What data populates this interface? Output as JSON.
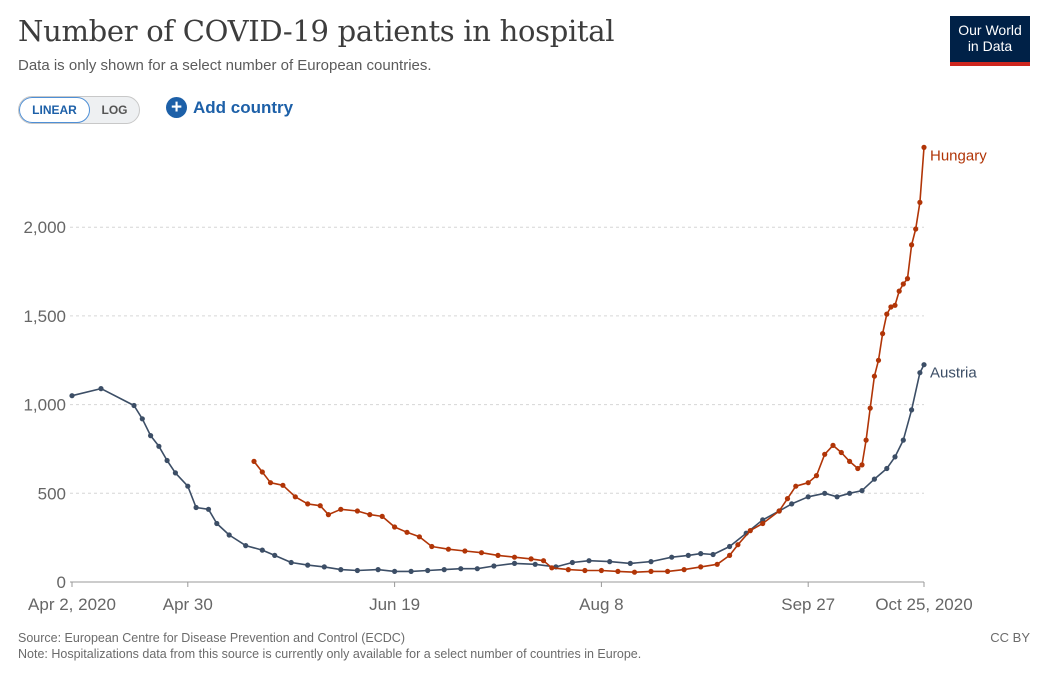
{
  "header": {
    "title": "Number of COVID-19 patients in hospital",
    "subtitle": "Data is only shown for a select number of European countries."
  },
  "logo": {
    "line1": "Our World",
    "line2": "in Data"
  },
  "controls": {
    "linear_label": "LINEAR",
    "log_label": "LOG",
    "add_country_label": "Add country",
    "active_scale": "linear"
  },
  "footer": {
    "source": "Source: European Centre for Disease Prevention and Control (ECDC)",
    "note": "Note: Hospitalizations data from this source is currently only available for a select number of countries in Europe.",
    "license": "CC BY"
  },
  "colors": {
    "austria": "#3c4e66",
    "hungary": "#b13507",
    "grid": "#d6d6d6",
    "axis_text": "#666666",
    "accent": "#1d60a8"
  },
  "chart_data": {
    "type": "line",
    "x_axis": "date",
    "xlim": [
      "2020-04-02",
      "2020-10-25"
    ],
    "ylim": [
      0,
      2500
    ],
    "xticks": [
      {
        "date": "2020-04-02",
        "label": "Apr 2, 2020"
      },
      {
        "date": "2020-04-30",
        "label": "Apr 30"
      },
      {
        "date": "2020-06-19",
        "label": "Jun 19"
      },
      {
        "date": "2020-08-08",
        "label": "Aug 8"
      },
      {
        "date": "2020-09-27",
        "label": "Sep 27"
      },
      {
        "date": "2020-10-25",
        "label": "Oct 25, 2020"
      }
    ],
    "yticks": [
      {
        "value": 0,
        "label": "0"
      },
      {
        "value": 500,
        "label": "500"
      },
      {
        "value": 1000,
        "label": "1,000"
      },
      {
        "value": 1500,
        "label": "1,500"
      },
      {
        "value": 2000,
        "label": "2,000"
      }
    ],
    "grid": "horizontal dashed",
    "legend": "end-of-line labels",
    "series": [
      {
        "name": "Austria",
        "color": "#3c4e66",
        "points": [
          [
            "2020-04-02",
            1050
          ],
          [
            "2020-04-09",
            1090
          ],
          [
            "2020-04-17",
            995
          ],
          [
            "2020-04-19",
            920
          ],
          [
            "2020-04-21",
            825
          ],
          [
            "2020-04-23",
            765
          ],
          [
            "2020-04-25",
            685
          ],
          [
            "2020-04-27",
            615
          ],
          [
            "2020-04-30",
            540
          ],
          [
            "2020-05-02",
            420
          ],
          [
            "2020-05-05",
            410
          ],
          [
            "2020-05-07",
            330
          ],
          [
            "2020-05-10",
            265
          ],
          [
            "2020-05-14",
            205
          ],
          [
            "2020-05-18",
            180
          ],
          [
            "2020-05-21",
            150
          ],
          [
            "2020-05-25",
            110
          ],
          [
            "2020-05-29",
            95
          ],
          [
            "2020-06-02",
            85
          ],
          [
            "2020-06-06",
            70
          ],
          [
            "2020-06-10",
            65
          ],
          [
            "2020-06-15",
            70
          ],
          [
            "2020-06-19",
            60
          ],
          [
            "2020-06-23",
            60
          ],
          [
            "2020-06-27",
            65
          ],
          [
            "2020-07-01",
            70
          ],
          [
            "2020-07-05",
            75
          ],
          [
            "2020-07-09",
            75
          ],
          [
            "2020-07-13",
            90
          ],
          [
            "2020-07-18",
            105
          ],
          [
            "2020-07-23",
            100
          ],
          [
            "2020-07-28",
            85
          ],
          [
            "2020-08-01",
            110
          ],
          [
            "2020-08-05",
            120
          ],
          [
            "2020-08-10",
            115
          ],
          [
            "2020-08-15",
            105
          ],
          [
            "2020-08-20",
            115
          ],
          [
            "2020-08-25",
            140
          ],
          [
            "2020-08-29",
            150
          ],
          [
            "2020-09-01",
            160
          ],
          [
            "2020-09-04",
            155
          ],
          [
            "2020-09-08",
            200
          ],
          [
            "2020-09-12",
            275
          ],
          [
            "2020-09-16",
            350
          ],
          [
            "2020-09-20",
            400
          ],
          [
            "2020-09-23",
            440
          ],
          [
            "2020-09-27",
            480
          ],
          [
            "2020-10-01",
            500
          ],
          [
            "2020-10-04",
            480
          ],
          [
            "2020-10-07",
            500
          ],
          [
            "2020-10-10",
            515
          ],
          [
            "2020-10-13",
            580
          ],
          [
            "2020-10-16",
            640
          ],
          [
            "2020-10-18",
            705
          ],
          [
            "2020-10-20",
            800
          ],
          [
            "2020-10-22",
            970
          ],
          [
            "2020-10-24",
            1180
          ],
          [
            "2020-10-25",
            1225
          ]
        ]
      },
      {
        "name": "Hungary",
        "color": "#b13507",
        "points": [
          [
            "2020-05-16",
            680
          ],
          [
            "2020-05-18",
            620
          ],
          [
            "2020-05-20",
            560
          ],
          [
            "2020-05-23",
            545
          ],
          [
            "2020-05-26",
            480
          ],
          [
            "2020-05-29",
            440
          ],
          [
            "2020-06-01",
            430
          ],
          [
            "2020-06-03",
            380
          ],
          [
            "2020-06-06",
            410
          ],
          [
            "2020-06-10",
            400
          ],
          [
            "2020-06-13",
            380
          ],
          [
            "2020-06-16",
            370
          ],
          [
            "2020-06-19",
            310
          ],
          [
            "2020-06-22",
            280
          ],
          [
            "2020-06-25",
            255
          ],
          [
            "2020-06-28",
            200
          ],
          [
            "2020-07-02",
            185
          ],
          [
            "2020-07-06",
            175
          ],
          [
            "2020-07-10",
            165
          ],
          [
            "2020-07-14",
            150
          ],
          [
            "2020-07-18",
            140
          ],
          [
            "2020-07-22",
            130
          ],
          [
            "2020-07-25",
            120
          ],
          [
            "2020-07-27",
            80
          ],
          [
            "2020-07-31",
            70
          ],
          [
            "2020-08-04",
            65
          ],
          [
            "2020-08-08",
            65
          ],
          [
            "2020-08-12",
            60
          ],
          [
            "2020-08-16",
            55
          ],
          [
            "2020-08-20",
            60
          ],
          [
            "2020-08-24",
            60
          ],
          [
            "2020-08-28",
            70
          ],
          [
            "2020-09-01",
            85
          ],
          [
            "2020-09-05",
            100
          ],
          [
            "2020-09-08",
            150
          ],
          [
            "2020-09-10",
            210
          ],
          [
            "2020-09-13",
            290
          ],
          [
            "2020-09-16",
            330
          ],
          [
            "2020-09-20",
            400
          ],
          [
            "2020-09-22",
            470
          ],
          [
            "2020-09-24",
            540
          ],
          [
            "2020-09-27",
            560
          ],
          [
            "2020-09-29",
            600
          ],
          [
            "2020-10-01",
            720
          ],
          [
            "2020-10-03",
            770
          ],
          [
            "2020-10-05",
            730
          ],
          [
            "2020-10-07",
            680
          ],
          [
            "2020-10-09",
            640
          ],
          [
            "2020-10-10",
            660
          ],
          [
            "2020-10-11",
            800
          ],
          [
            "2020-10-12",
            980
          ],
          [
            "2020-10-13",
            1160
          ],
          [
            "2020-10-14",
            1250
          ],
          [
            "2020-10-15",
            1400
          ],
          [
            "2020-10-16",
            1510
          ],
          [
            "2020-10-17",
            1550
          ],
          [
            "2020-10-18",
            1560
          ],
          [
            "2020-10-19",
            1640
          ],
          [
            "2020-10-20",
            1680
          ],
          [
            "2020-10-21",
            1710
          ],
          [
            "2020-10-22",
            1900
          ],
          [
            "2020-10-23",
            1990
          ],
          [
            "2020-10-24",
            2140
          ],
          [
            "2020-10-25",
            2450
          ]
        ]
      }
    ]
  }
}
